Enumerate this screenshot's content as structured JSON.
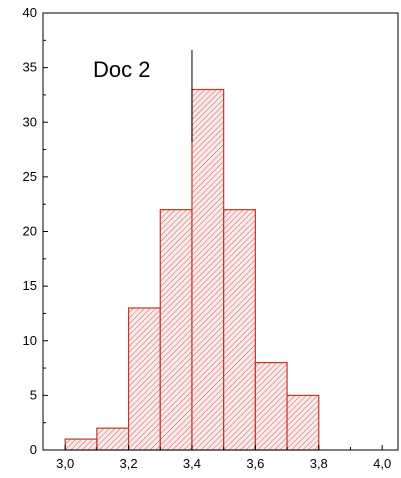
{
  "chart_data": {
    "type": "bar",
    "title": "Doc 2",
    "xlabel": "",
    "ylabel": "",
    "bin_width": 0.1,
    "bins": [
      {
        "start": 3.0,
        "end": 3.1,
        "value": 1
      },
      {
        "start": 3.1,
        "end": 3.2,
        "value": 2
      },
      {
        "start": 3.2,
        "end": 3.3,
        "value": 13
      },
      {
        "start": 3.3,
        "end": 3.4,
        "value": 22
      },
      {
        "start": 3.4,
        "end": 3.5,
        "value": 33
      },
      {
        "start": 3.5,
        "end": 3.6,
        "value": 22
      },
      {
        "start": 3.6,
        "end": 3.7,
        "value": 8
      },
      {
        "start": 3.7,
        "end": 3.8,
        "value": 5
      }
    ],
    "marker_x": 3.4,
    "xlim": [
      2.93,
      4.05
    ],
    "ylim": [
      0,
      40
    ],
    "x_ticks": [
      "3,0",
      "3,2",
      "3,4",
      "3,6",
      "3,8",
      "4,0"
    ],
    "x_tick_values": [
      3.0,
      3.2,
      3.4,
      3.6,
      3.8,
      4.0
    ],
    "y_ticks": [
      "0",
      "5",
      "10",
      "15",
      "20",
      "25",
      "30",
      "35",
      "40"
    ],
    "y_tick_values": [
      0,
      5,
      10,
      15,
      20,
      25,
      30,
      35,
      40
    ],
    "grid": false,
    "bar_color": "#c0392b",
    "fill_style": "hatched"
  }
}
